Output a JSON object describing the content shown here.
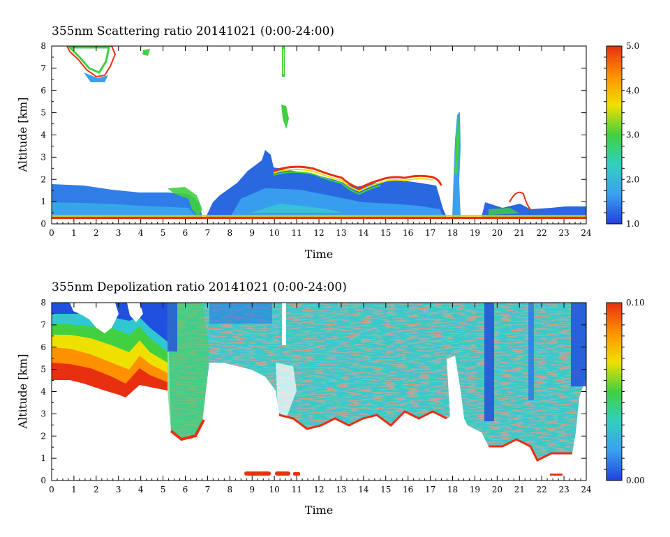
{
  "chart_data": [
    {
      "type": "heatmap",
      "title": "355nm Scattering ratio  20141021 (0:00-24:00)",
      "xlabel": "Time",
      "ylabel": "Altitude [km]",
      "xlim": [
        0,
        24
      ],
      "ylim": [
        0,
        8
      ],
      "x_ticks": [
        "0",
        "1",
        "2",
        "3",
        "4",
        "5",
        "6",
        "7",
        "8",
        "9",
        "10",
        "11",
        "12",
        "13",
        "14",
        "15",
        "16",
        "17",
        "18",
        "19",
        "20",
        "21",
        "22",
        "23",
        "24"
      ],
      "y_ticks": [
        "0",
        "1",
        "2",
        "3",
        "4",
        "5",
        "6",
        "7",
        "8"
      ],
      "colorbar": {
        "range": [
          1.0,
          5.0
        ],
        "ticks": [
          "1.0",
          "2.0",
          "3.0",
          "4.0",
          "5.0"
        ]
      },
      "colormap": [
        "#2040e0",
        "#3aa0f0",
        "#30d0c0",
        "#40d040",
        "#f0e000",
        "#ff9000",
        "#e83010"
      ],
      "features": [
        {
          "kind": "boundary-layer",
          "t": [
            0,
            6.5
          ],
          "top_km": [
            1.8,
            1.2
          ],
          "value": 1.3
        },
        {
          "kind": "boundary-layer",
          "t": [
            7.5,
            17.5
          ],
          "top_km": [
            2.5,
            0.9
          ],
          "value": 1.5
        },
        {
          "kind": "cirrus",
          "t": [
            1.3,
            3.0
          ],
          "alt_km": [
            6.5,
            8.0
          ],
          "value": 3.5
        },
        {
          "kind": "cloud-top-edge",
          "t": [
            10.5,
            18.5
          ],
          "alt_km": [
            1.5,
            2.6
          ],
          "value": 4.8
        },
        {
          "kind": "convective-plume",
          "t": [
            17.9,
            18.3
          ],
          "alt_km": [
            0.5,
            5.0
          ],
          "value": 2.8
        },
        {
          "kind": "low-cloud",
          "t": [
            19.5,
            24
          ],
          "alt_km": [
            0.3,
            1.3
          ],
          "value": 2.2
        }
      ]
    },
    {
      "type": "heatmap",
      "title": "355nm Depolization ratio  20141021 (0:00-24:00)",
      "xlabel": "Time",
      "ylabel": "Altitude [km]",
      "xlim": [
        0,
        24
      ],
      "ylim": [
        0,
        8
      ],
      "x_ticks": [
        "0",
        "1",
        "2",
        "3",
        "4",
        "5",
        "6",
        "7",
        "8",
        "9",
        "10",
        "11",
        "12",
        "13",
        "14",
        "15",
        "16",
        "17",
        "18",
        "19",
        "20",
        "21",
        "22",
        "23",
        "24"
      ],
      "y_ticks": [
        "0",
        "1",
        "2",
        "3",
        "4",
        "5",
        "6",
        "7",
        "8"
      ],
      "colorbar": {
        "range": [
          0.0,
          0.1
        ],
        "ticks": [
          "0.00",
          "0.10"
        ]
      },
      "colormap": [
        "#2040e0",
        "#3aa0f0",
        "#30d0c0",
        "#40d040",
        "#f0e000",
        "#ff9000",
        "#e83010"
      ],
      "features": [
        {
          "kind": "clear-sky-gradient",
          "t": [
            0,
            5.2
          ],
          "alt_km": [
            3.8,
            8.0
          ],
          "value": 0.04
        },
        {
          "kind": "noisy-field",
          "t": [
            5.2,
            24
          ],
          "alt_km": [
            2.0,
            8.0
          ],
          "value": 0.06
        },
        {
          "kind": "noise-streak",
          "t": [
            19.5,
            19.8
          ],
          "alt_km": [
            4.0,
            8.0
          ],
          "value": 0.01
        },
        {
          "kind": "noise-streak",
          "t": [
            23.6,
            24
          ],
          "alt_km": [
            4.5,
            8.0
          ],
          "value": 0.01
        },
        {
          "kind": "near-surface-band",
          "t": [
            8.7,
            11.0
          ],
          "alt_km": [
            0.25,
            0.35
          ],
          "value": 0.1
        }
      ]
    }
  ]
}
